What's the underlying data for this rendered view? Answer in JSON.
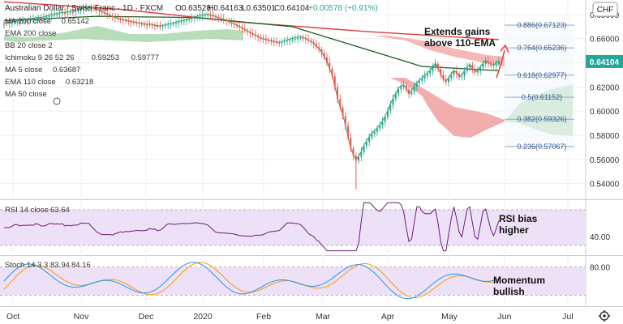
{
  "header": {
    "symbol": "Australian Dollar / Swiss Franc · 1D · FXCM",
    "ohlc_o": "O0.63528",
    "ohlc_h": "H0.64163",
    "ohlc_l": "L0.63501",
    "ohlc_c": "C0.64104",
    "ohlc_chg": "+0.00576 (+0.91%)",
    "currency": "CHF"
  },
  "colors": {
    "up": "#26a69a",
    "down": "#ef5350",
    "ma200": "#e53935",
    "ema110": "#1b5e20",
    "ma5": "#43a047",
    "cloud_bull": "#a5d6a7",
    "cloud_bear": "#ef9a9a",
    "rsi": "#6d1b7b",
    "stoch_k": "#2196f3",
    "stoch_d": "#ff9800",
    "band": "#ede1f7"
  },
  "legend": [
    {
      "label": "MA 200 close",
      "value": "0.65142",
      "value2": ""
    },
    {
      "label": "EMA 200 close",
      "value": "",
      "value2": ""
    },
    {
      "label": "BB 20 close 2",
      "value": "",
      "value2": ""
    },
    {
      "label": "Ichimoku 9 26 52 26",
      "value": "0.59253",
      "value2": "0.59777"
    },
    {
      "label": "MA 5 close",
      "value": "0.63687",
      "value2": ""
    },
    {
      "label": "EMA 110 close",
      "value": "0.63218",
      "value2": ""
    },
    {
      "label": "MA 50 close",
      "value": "",
      "value2": ""
    }
  ],
  "annotations": {
    "top_line1": "Extends gains",
    "top_line2": "above 110-EMA",
    "rsi_line1": "RSI bias",
    "rsi_line2": "higher",
    "stoch_line1": "Momentum",
    "stoch_line2": "bullish"
  },
  "rsi_legend": {
    "label": "RSI 14 close",
    "value": "63.64"
  },
  "stoch_legend": {
    "label": "Stoch 14 3 3",
    "k": "83.94",
    "d": "84.16"
  },
  "chart_data": {
    "type": "candlestick",
    "x_ticks": [
      "Oct",
      "Nov",
      "Dec",
      "2020",
      "Feb",
      "Mar",
      "Apr",
      "May",
      "Jun",
      "Jul"
    ],
    "y_ticks": [
      "0.68000",
      "0.66000",
      "0.64000",
      "0.62000",
      "0.60000",
      "0.58000",
      "0.56000",
      "0.54000"
    ],
    "ylim": [
      0.527,
      0.692
    ],
    "last_price": "0.64104",
    "fib_levels": [
      {
        "label": "0.886(0.67123)",
        "value": 0.67123
      },
      {
        "label": "0.764(0.65236)",
        "value": 0.65236
      },
      {
        "label": "0.618(0.62977)",
        "value": 0.62977
      },
      {
        "label": "0.5(0.61152)",
        "value": 0.61152
      },
      {
        "label": "0.382(0.59326)",
        "value": 0.59326
      },
      {
        "label": "0.236(0.57067)",
        "value": 0.57067
      }
    ],
    "close_series": [
      0.6725,
      0.6722,
      0.6728,
      0.6731,
      0.6735,
      0.6741,
      0.6738,
      0.6745,
      0.6751,
      0.6748,
      0.6756,
      0.6761,
      0.6765,
      0.677,
      0.6768,
      0.6772,
      0.678,
      0.6785,
      0.679,
      0.6795,
      0.6801,
      0.6805,
      0.6812,
      0.6808,
      0.6815,
      0.682,
      0.6818,
      0.6826,
      0.6832,
      0.6838,
      0.6845,
      0.6851,
      0.6857,
      0.685,
      0.6845,
      0.6838,
      0.6826,
      0.6815,
      0.6808,
      0.6796,
      0.6785,
      0.6776,
      0.677,
      0.6762,
      0.6758,
      0.675,
      0.6746,
      0.674,
      0.6735,
      0.6731,
      0.6728,
      0.6722,
      0.6718,
      0.6715,
      0.6711,
      0.6714,
      0.6708,
      0.6705,
      0.67,
      0.6697,
      0.6702,
      0.6708,
      0.6713,
      0.6718,
      0.6722,
      0.6728,
      0.6734,
      0.674,
      0.6746,
      0.6751,
      0.6758,
      0.6765,
      0.6772,
      0.6778,
      0.6784,
      0.6789,
      0.6793,
      0.6795,
      0.679,
      0.6783,
      0.6775,
      0.6768,
      0.676,
      0.6752,
      0.6744,
      0.6735,
      0.6726,
      0.6716,
      0.6704,
      0.6692,
      0.668,
      0.6668,
      0.6655,
      0.6643,
      0.6632,
      0.6622,
      0.661,
      0.66,
      0.6592,
      0.6586,
      0.658,
      0.6575,
      0.657,
      0.6566,
      0.6562,
      0.6568,
      0.6575,
      0.6582,
      0.6588,
      0.6595,
      0.66,
      0.6605,
      0.6608,
      0.6602,
      0.6594,
      0.6582,
      0.657,
      0.6555,
      0.653,
      0.651,
      0.648,
      0.6445,
      0.64,
      0.635,
      0.629,
      0.62,
      0.61,
      0.603,
      0.596,
      0.588,
      0.578,
      0.569,
      0.563,
      0.559,
      0.562,
      0.566,
      0.571,
      0.5745,
      0.578,
      0.581,
      0.583,
      0.5855,
      0.588,
      0.591,
      0.595,
      0.6,
      0.605,
      0.61,
      0.614,
      0.618,
      0.62,
      0.621,
      0.618,
      0.614,
      0.616,
      0.62,
      0.623,
      0.625,
      0.627,
      0.629,
      0.631,
      0.633,
      0.636,
      0.639,
      0.635,
      0.63,
      0.626,
      0.624,
      0.627,
      0.63,
      0.633,
      0.631,
      0.628,
      0.629,
      0.633,
      0.636,
      0.638,
      0.635,
      0.632,
      0.633,
      0.636,
      0.639,
      0.641,
      0.6395,
      0.638,
      0.6375,
      0.639,
      0.641
    ],
    "ma200_y": [
      0.6905,
      0.6842,
      0.6735,
      0.666,
      0.6592
    ],
    "ema110_y": [
      0.675,
      0.6785,
      0.6775,
      0.67,
      0.637,
      0.6335
    ],
    "rsi_ticks": [
      "40.00"
    ],
    "stoch_ticks": [
      "80.00"
    ]
  }
}
